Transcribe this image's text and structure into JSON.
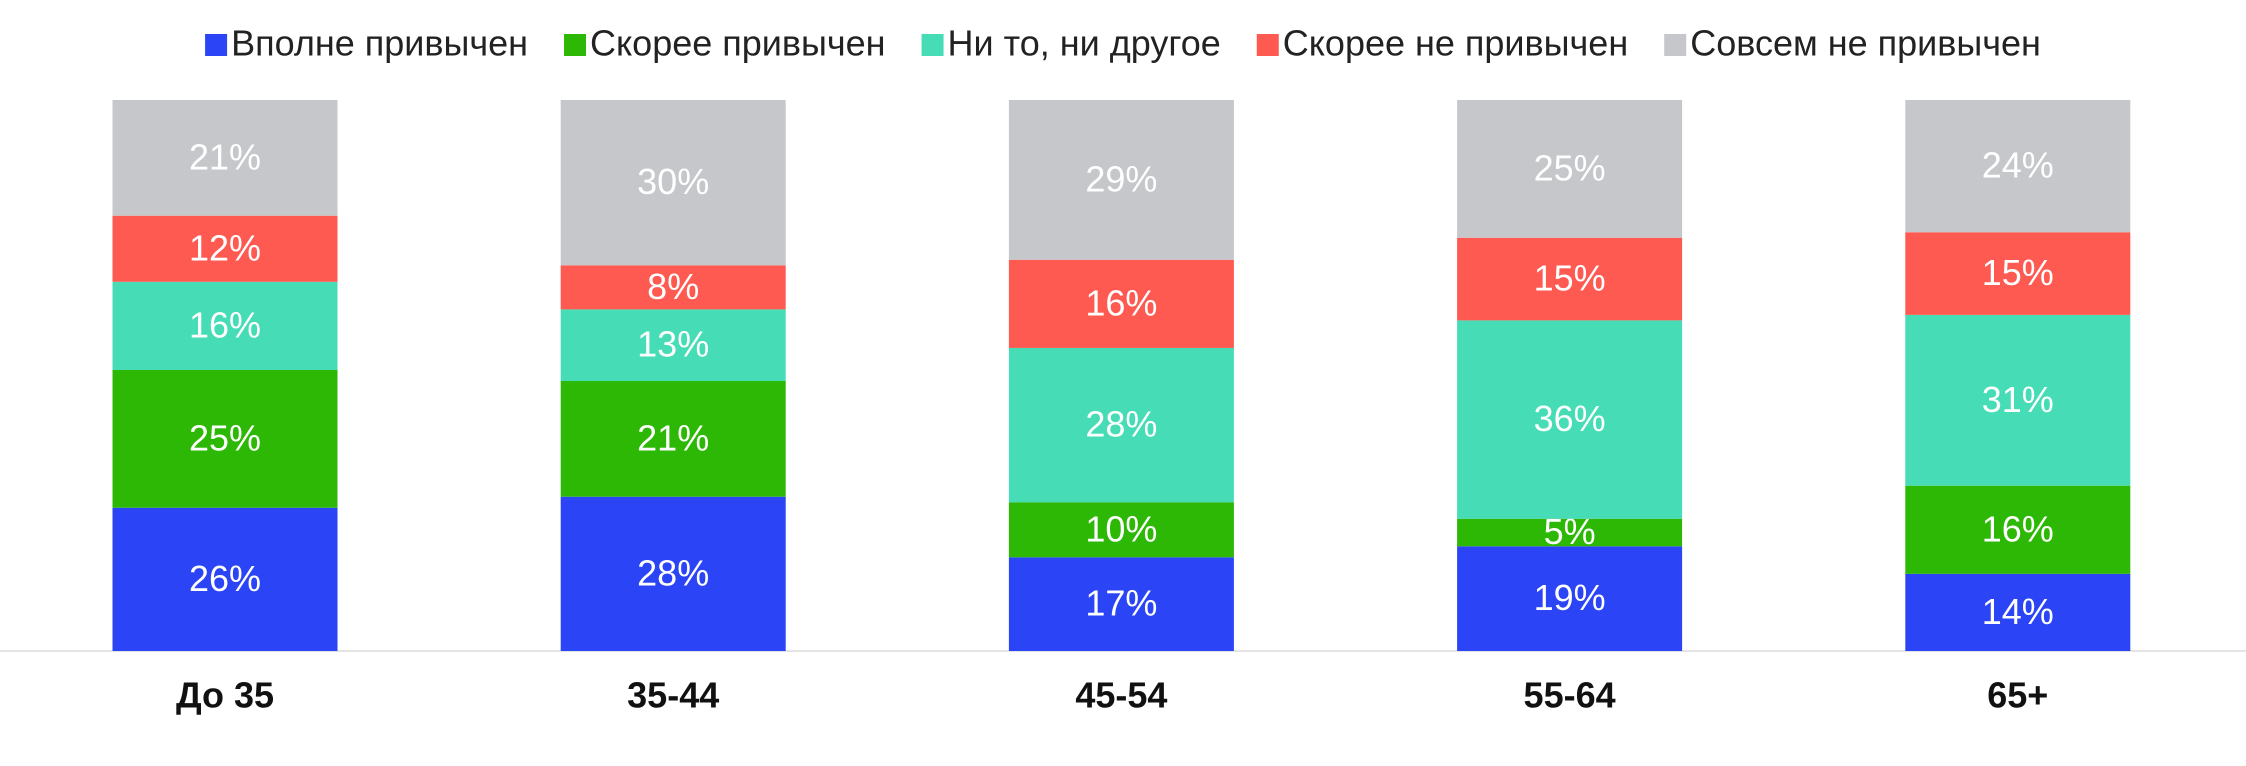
{
  "chart_data": {
    "type": "stacked_bar",
    "categories": [
      "До 35",
      "35-44",
      "45-54",
      "55-64",
      "65+"
    ],
    "ylim": [
      0,
      100
    ],
    "legend": "top",
    "series": [
      {
        "name": "Вполне привычен",
        "color": "#2b44f5",
        "values": [
          26,
          28,
          17,
          19,
          14
        ],
        "value_labels": [
          "26%",
          "28%",
          "17%",
          "19%",
          "14%"
        ]
      },
      {
        "name": "Скорее привычен",
        "color": "#2cb804",
        "values": [
          25,
          21,
          10,
          5,
          16
        ],
        "value_labels": [
          "25%",
          "21%",
          "10%",
          "5%",
          "16%"
        ]
      },
      {
        "name": "Ни то, ни другое",
        "color": "#46dcb6",
        "values": [
          16,
          13,
          28,
          36,
          31
        ],
        "value_labels": [
          "16%",
          "13%",
          "28%",
          "36%",
          "31%"
        ]
      },
      {
        "name": "Скорее не привычен",
        "color": "#fe5a52",
        "values": [
          12,
          8,
          16,
          15,
          15
        ],
        "value_labels": [
          "12%",
          "8%",
          "16%",
          "15%",
          "15%"
        ]
      },
      {
        "name": "Совсем не привычен",
        "color": "#c5c7ca",
        "values": [
          21,
          30,
          29,
          25,
          24
        ],
        "value_labels": [
          "21%",
          "30%",
          "29%",
          "25%",
          "24%"
        ]
      }
    ]
  }
}
